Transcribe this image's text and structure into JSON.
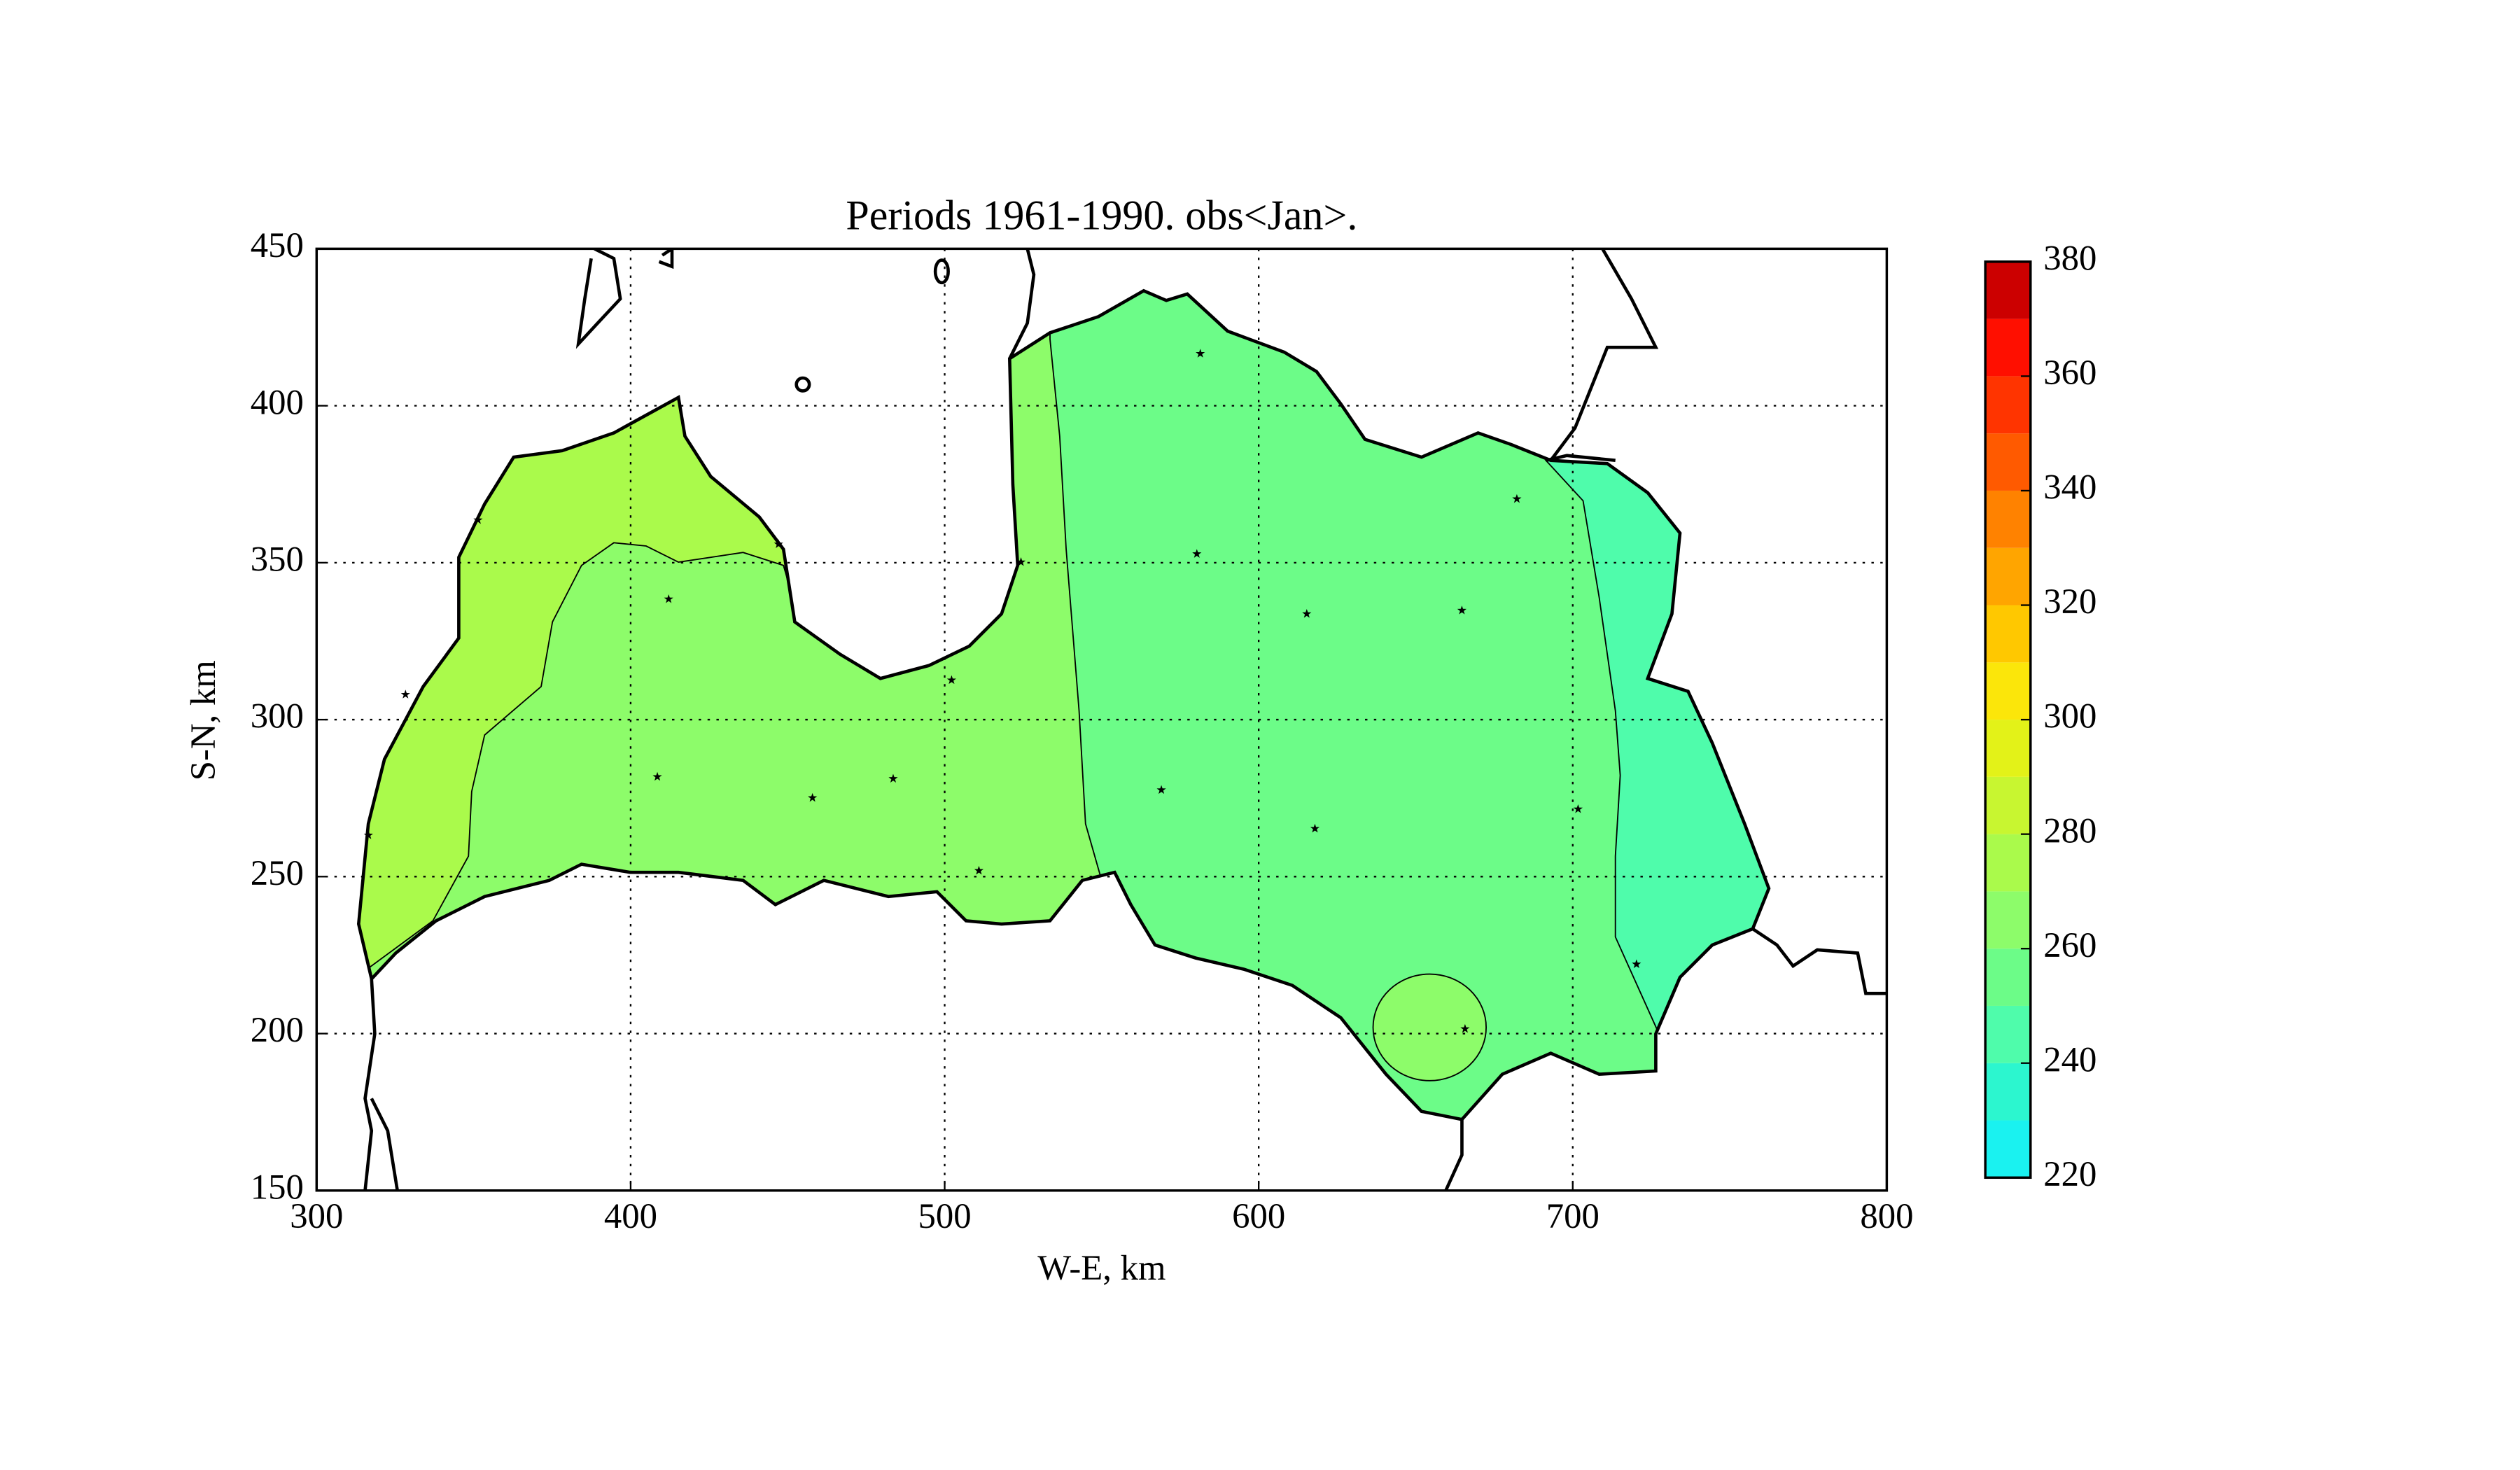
{
  "chart_data": {
    "type": "contour",
    "title": "Periods 1961-1990. obs<Jan>.",
    "xlabel": "W-E, km",
    "ylabel": "S-N, km",
    "xlim": [
      300,
      800
    ],
    "ylim": [
      150,
      450
    ],
    "xticks": [
      300,
      400,
      500,
      600,
      700,
      800
    ],
    "yticks": [
      150,
      200,
      250,
      300,
      350,
      400,
      450
    ],
    "grid": true,
    "stations": {
      "x": [
        581.4,
        682.2,
        580.3,
        615.3,
        664.7,
        524.3,
        502.2,
        412.1,
        408.5,
        457.9,
        483.6,
        510.9,
        569.0,
        617.9,
        701.7,
        720.3,
        665.7,
        328.3,
        316.5,
        351.4,
        447.1
      ],
      "y": [
        416.6,
        370.3,
        352.8,
        333.7,
        334.8,
        350.2,
        312.6,
        338.4,
        281.8,
        275.1,
        281.2,
        251.9,
        277.6,
        265.3,
        271.5,
        222.1,
        201.5,
        308.0,
        263.2,
        363.6,
        355.9
      ]
    },
    "colorbar": {
      "levels": [
        220,
        230,
        240,
        250,
        260,
        270,
        280,
        290,
        300,
        310,
        320,
        330,
        340,
        350,
        360,
        370,
        380
      ],
      "colors": [
        "#1af2f0",
        "#2cf6cf",
        "#4ffcab",
        "#6cfc88",
        "#8dfc6a",
        "#aafa4b",
        "#c8f630",
        "#e3f218",
        "#fbe60a",
        "#ffc800",
        "#ffa500",
        "#ff8200",
        "#ff5a00",
        "#ff3400",
        "#ff0f00",
        "#cc0000"
      ],
      "ticks": [
        220,
        240,
        260,
        280,
        300,
        320,
        340,
        360,
        380
      ]
    }
  }
}
